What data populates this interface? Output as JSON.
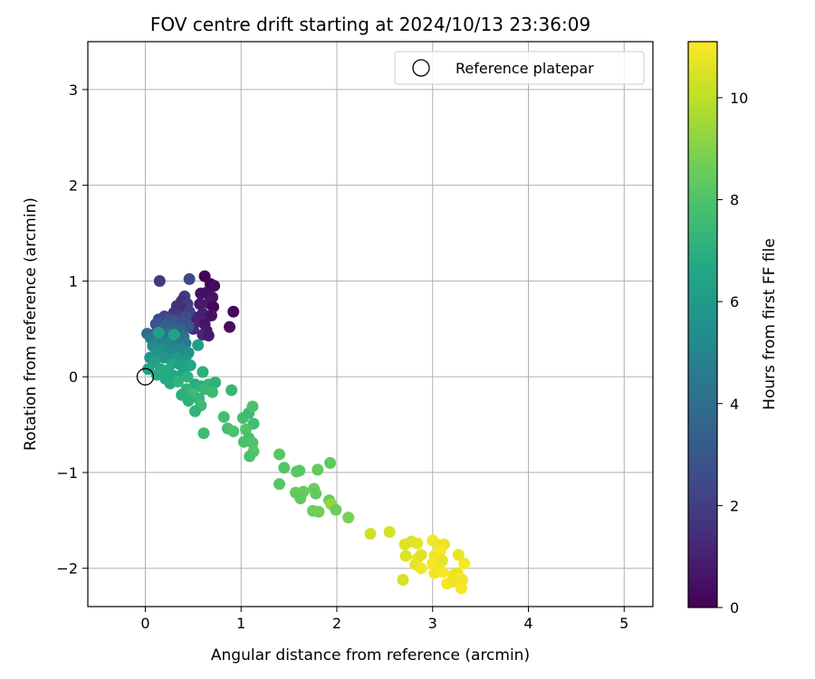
{
  "chart_data": {
    "type": "scatter",
    "title": "FOV centre drift starting at 2024/10/13 23:36:09",
    "xlabel": "Angular distance from reference (arcmin)",
    "ylabel": "Rotation from reference (arcmin)",
    "xlim": [
      -0.6,
      5.3
    ],
    "ylim": [
      -2.4,
      3.5
    ],
    "xticks": [
      0,
      1,
      2,
      3,
      4,
      5
    ],
    "yticks": [
      -2,
      -1,
      0,
      1,
      2,
      3
    ],
    "grid": true,
    "legend": {
      "placement": "top-right",
      "entries": [
        {
          "label": "Reference platepar",
          "marker": "open-circle"
        }
      ]
    },
    "colorbar": {
      "label": "Hours from first FF file",
      "range": [
        0,
        11.1
      ],
      "ticks": [
        0,
        2,
        4,
        6,
        8,
        10
      ],
      "colormap": "viridis"
    },
    "reference_point": {
      "x": 0,
      "y": 0
    },
    "series": [
      {
        "points": [
          {
            "x": 0.62,
            "y": 1.05,
            "c": 0.1
          },
          {
            "x": 0.68,
            "y": 0.97,
            "c": 0.2
          },
          {
            "x": 0.72,
            "y": 0.95,
            "c": 0.3
          },
          {
            "x": 0.64,
            "y": 0.88,
            "c": 0.4
          },
          {
            "x": 0.58,
            "y": 0.87,
            "c": 0.5
          },
          {
            "x": 0.7,
            "y": 0.83,
            "c": 0.6
          },
          {
            "x": 0.66,
            "y": 0.77,
            "c": 0.7
          },
          {
            "x": 0.57,
            "y": 0.76,
            "c": 0.8
          },
          {
            "x": 0.71,
            "y": 0.73,
            "c": 0.2
          },
          {
            "x": 0.92,
            "y": 0.68,
            "c": 0.3
          },
          {
            "x": 0.6,
            "y": 0.66,
            "c": 0.9
          },
          {
            "x": 0.69,
            "y": 0.64,
            "c": 0.5
          },
          {
            "x": 0.52,
            "y": 0.62,
            "c": 1.0
          },
          {
            "x": 0.57,
            "y": 0.58,
            "c": 1.1
          },
          {
            "x": 0.62,
            "y": 0.55,
            "c": 0.6
          },
          {
            "x": 0.88,
            "y": 0.52,
            "c": 0.4
          },
          {
            "x": 0.5,
            "y": 0.5,
            "c": 1.3
          },
          {
            "x": 0.64,
            "y": 0.48,
            "c": 0.7
          },
          {
            "x": 0.6,
            "y": 0.44,
            "c": 1.2
          },
          {
            "x": 0.66,
            "y": 0.43,
            "c": 0.8
          },
          {
            "x": 0.46,
            "y": 1.02,
            "c": 2.4
          },
          {
            "x": 0.15,
            "y": 1.0,
            "c": 1.9
          },
          {
            "x": 0.41,
            "y": 0.84,
            "c": 1.8
          },
          {
            "x": 0.38,
            "y": 0.79,
            "c": 1.4
          },
          {
            "x": 0.44,
            "y": 0.76,
            "c": 2.0
          },
          {
            "x": 0.33,
            "y": 0.74,
            "c": 1.6
          },
          {
            "x": 0.39,
            "y": 0.7,
            "c": 1.5
          },
          {
            "x": 0.46,
            "y": 0.68,
            "c": 2.2
          },
          {
            "x": 0.3,
            "y": 0.67,
            "c": 1.7
          },
          {
            "x": 0.35,
            "y": 0.63,
            "c": 2.1
          },
          {
            "x": 0.42,
            "y": 0.62,
            "c": 2.6
          },
          {
            "x": 0.2,
            "y": 0.63,
            "c": 2.3
          },
          {
            "x": 0.26,
            "y": 0.6,
            "c": 2.8
          },
          {
            "x": 0.14,
            "y": 0.6,
            "c": 2.5
          },
          {
            "x": 0.31,
            "y": 0.57,
            "c": 3.0
          },
          {
            "x": 0.38,
            "y": 0.56,
            "c": 2.7
          },
          {
            "x": 0.11,
            "y": 0.55,
            "c": 2.9
          },
          {
            "x": 0.22,
            "y": 0.54,
            "c": 3.2
          },
          {
            "x": 0.28,
            "y": 0.52,
            "c": 3.4
          },
          {
            "x": 0.45,
            "y": 0.52,
            "c": 3.1
          },
          {
            "x": 0.36,
            "y": 0.5,
            "c": 3.6
          },
          {
            "x": 0.18,
            "y": 0.49,
            "c": 3.3
          },
          {
            "x": 0.02,
            "y": 0.45,
            "c": 3.8
          },
          {
            "x": 0.09,
            "y": 0.44,
            "c": 3.5
          },
          {
            "x": 0.24,
            "y": 0.45,
            "c": 4.0
          },
          {
            "x": 0.31,
            "y": 0.43,
            "c": 3.7
          },
          {
            "x": 0.4,
            "y": 0.42,
            "c": 4.2
          },
          {
            "x": 0.06,
            "y": 0.4,
            "c": 4.4
          },
          {
            "x": 0.15,
            "y": 0.4,
            "c": 4.1
          },
          {
            "x": 0.26,
            "y": 0.39,
            "c": 4.6
          },
          {
            "x": 0.34,
            "y": 0.37,
            "c": 4.3
          },
          {
            "x": 0.11,
            "y": 0.36,
            "c": 4.8
          },
          {
            "x": 0.21,
            "y": 0.35,
            "c": 5.0
          },
          {
            "x": 0.42,
            "y": 0.35,
            "c": 4.5
          },
          {
            "x": 0.08,
            "y": 0.32,
            "c": 5.2
          },
          {
            "x": 0.3,
            "y": 0.31,
            "c": 4.9
          },
          {
            "x": 0.18,
            "y": 0.29,
            "c": 5.4
          },
          {
            "x": 0.38,
            "y": 0.29,
            "c": 5.1
          },
          {
            "x": 0.12,
            "y": 0.26,
            "c": 5.6
          },
          {
            "x": 0.25,
            "y": 0.25,
            "c": 5.3
          },
          {
            "x": 0.45,
            "y": 0.25,
            "c": 5.5
          },
          {
            "x": 0.55,
            "y": 0.33,
            "c": 6.2
          },
          {
            "x": 0.3,
            "y": 0.44,
            "c": 6.4
          },
          {
            "x": 0.14,
            "y": 0.46,
            "c": 6.1
          },
          {
            "x": 0.05,
            "y": 0.2,
            "c": 5.8
          },
          {
            "x": 0.2,
            "y": 0.2,
            "c": 5.7
          },
          {
            "x": 0.33,
            "y": 0.2,
            "c": 6.0
          },
          {
            "x": 0.42,
            "y": 0.18,
            "c": 5.9
          },
          {
            "x": 0.1,
            "y": 0.15,
            "c": 6.3
          },
          {
            "x": 0.28,
            "y": 0.14,
            "c": 6.5
          },
          {
            "x": 0.36,
            "y": 0.13,
            "c": 6.2
          },
          {
            "x": 0.47,
            "y": 0.12,
            "c": 6.6
          },
          {
            "x": 0.03,
            "y": 0.08,
            "c": 6.4
          },
          {
            "x": 0.16,
            "y": 0.08,
            "c": 6.7
          },
          {
            "x": 0.24,
            "y": 0.07,
            "c": 6.8
          },
          {
            "x": 0.4,
            "y": 0.05,
            "c": 6.5
          },
          {
            "x": 0.6,
            "y": 0.05,
            "c": 7.0
          },
          {
            "x": 0.12,
            "y": 0.02,
            "c": 6.9
          },
          {
            "x": 0.3,
            "y": 0.01,
            "c": 6.6
          },
          {
            "x": 0.21,
            "y": -0.02,
            "c": 6.7
          },
          {
            "x": 0.44,
            "y": 0.0,
            "c": 7.1
          },
          {
            "x": 0.26,
            "y": -0.07,
            "c": 6.8
          },
          {
            "x": 0.34,
            "y": -0.05,
            "c": 7.2
          },
          {
            "x": 0.52,
            "y": -0.08,
            "c": 6.9
          },
          {
            "x": 0.58,
            "y": -0.1,
            "c": 7.0
          },
          {
            "x": 0.66,
            "y": -0.08,
            "c": 7.3
          },
          {
            "x": 0.73,
            "y": -0.06,
            "c": 7.1
          },
          {
            "x": 0.43,
            "y": -0.13,
            "c": 7.2
          },
          {
            "x": 0.62,
            "y": -0.13,
            "c": 7.4
          },
          {
            "x": 0.7,
            "y": -0.16,
            "c": 7.5
          },
          {
            "x": 0.38,
            "y": -0.19,
            "c": 7.0
          },
          {
            "x": 0.5,
            "y": -0.18,
            "c": 7.6
          },
          {
            "x": 0.9,
            "y": -0.14,
            "c": 7.4
          },
          {
            "x": 0.56,
            "y": -0.23,
            "c": 7.3
          },
          {
            "x": 0.45,
            "y": -0.25,
            "c": 7.1
          },
          {
            "x": 0.58,
            "y": -0.3,
            "c": 7.5
          },
          {
            "x": 0.52,
            "y": -0.36,
            "c": 7.2
          },
          {
            "x": 0.61,
            "y": -0.59,
            "c": 7.6
          },
          {
            "x": 0.82,
            "y": -0.42,
            "c": 7.7
          },
          {
            "x": 1.02,
            "y": -0.43,
            "c": 7.8
          },
          {
            "x": 1.08,
            "y": -0.38,
            "c": 7.6
          },
          {
            "x": 1.12,
            "y": -0.31,
            "c": 7.9
          },
          {
            "x": 1.13,
            "y": -0.49,
            "c": 7.7
          },
          {
            "x": 0.86,
            "y": -0.54,
            "c": 7.8
          },
          {
            "x": 0.92,
            "y": -0.57,
            "c": 7.9
          },
          {
            "x": 1.05,
            "y": -0.55,
            "c": 8.0
          },
          {
            "x": 1.08,
            "y": -0.64,
            "c": 7.8
          },
          {
            "x": 1.03,
            "y": -0.68,
            "c": 7.9
          },
          {
            "x": 1.12,
            "y": -0.69,
            "c": 8.0
          },
          {
            "x": 1.13,
            "y": -0.78,
            "c": 8.1
          },
          {
            "x": 1.09,
            "y": -0.83,
            "c": 7.9
          },
          {
            "x": 1.4,
            "y": -0.81,
            "c": 8.2
          },
          {
            "x": 1.45,
            "y": -0.95,
            "c": 8.1
          },
          {
            "x": 1.58,
            "y": -0.99,
            "c": 8.3
          },
          {
            "x": 1.61,
            "y": -0.98,
            "c": 8.2
          },
          {
            "x": 1.8,
            "y": -0.97,
            "c": 8.4
          },
          {
            "x": 1.93,
            "y": -0.9,
            "c": 8.3
          },
          {
            "x": 1.4,
            "y": -1.12,
            "c": 8.2
          },
          {
            "x": 1.57,
            "y": -1.21,
            "c": 8.4
          },
          {
            "x": 1.65,
            "y": -1.2,
            "c": 8.5
          },
          {
            "x": 1.62,
            "y": -1.27,
            "c": 8.3
          },
          {
            "x": 1.76,
            "y": -1.17,
            "c": 8.6
          },
          {
            "x": 1.78,
            "y": -1.22,
            "c": 8.4
          },
          {
            "x": 1.92,
            "y": -1.29,
            "c": 8.5
          },
          {
            "x": 1.94,
            "y": -1.33,
            "c": 9.3
          },
          {
            "x": 1.75,
            "y": -1.4,
            "c": 8.6
          },
          {
            "x": 1.81,
            "y": -1.41,
            "c": 8.7
          },
          {
            "x": 1.99,
            "y": -1.39,
            "c": 8.6
          },
          {
            "x": 2.12,
            "y": -1.47,
            "c": 8.8
          },
          {
            "x": 2.35,
            "y": -1.64,
            "c": 10.3
          },
          {
            "x": 2.55,
            "y": -1.62,
            "c": 10.4
          },
          {
            "x": 2.71,
            "y": -1.75,
            "c": 10.6
          },
          {
            "x": 2.78,
            "y": -1.72,
            "c": 10.5
          },
          {
            "x": 2.84,
            "y": -1.74,
            "c": 10.7
          },
          {
            "x": 2.72,
            "y": -1.87,
            "c": 10.5
          },
          {
            "x": 2.84,
            "y": -1.9,
            "c": 10.8
          },
          {
            "x": 2.88,
            "y": -1.86,
            "c": 10.6
          },
          {
            "x": 2.82,
            "y": -1.96,
            "c": 10.7
          },
          {
            "x": 2.88,
            "y": -2.0,
            "c": 10.9
          },
          {
            "x": 2.69,
            "y": -2.12,
            "c": 10.4
          },
          {
            "x": 3.0,
            "y": -1.71,
            "c": 11.0
          },
          {
            "x": 3.05,
            "y": -1.75,
            "c": 10.9
          },
          {
            "x": 3.12,
            "y": -1.75,
            "c": 10.8
          },
          {
            "x": 3.02,
            "y": -1.87,
            "c": 10.9
          },
          {
            "x": 3.08,
            "y": -1.82,
            "c": 11.0
          },
          {
            "x": 3.1,
            "y": -1.92,
            "c": 10.7
          },
          {
            "x": 3.0,
            "y": -1.95,
            "c": 11.0
          },
          {
            "x": 3.06,
            "y": -2.0,
            "c": 10.8
          },
          {
            "x": 3.02,
            "y": -2.05,
            "c": 10.9
          },
          {
            "x": 3.1,
            "y": -2.04,
            "c": 11.0
          },
          {
            "x": 3.21,
            "y": -2.07,
            "c": 10.9
          },
          {
            "x": 3.27,
            "y": -1.86,
            "c": 10.8
          },
          {
            "x": 3.33,
            "y": -1.95,
            "c": 11.0
          },
          {
            "x": 3.26,
            "y": -2.05,
            "c": 10.7
          },
          {
            "x": 3.28,
            "y": -2.1,
            "c": 11.0
          },
          {
            "x": 3.31,
            "y": -2.12,
            "c": 10.9
          },
          {
            "x": 3.15,
            "y": -2.16,
            "c": 11.0
          },
          {
            "x": 3.22,
            "y": -2.14,
            "c": 10.8
          },
          {
            "x": 3.3,
            "y": -2.21,
            "c": 11.0
          }
        ]
      }
    ]
  }
}
